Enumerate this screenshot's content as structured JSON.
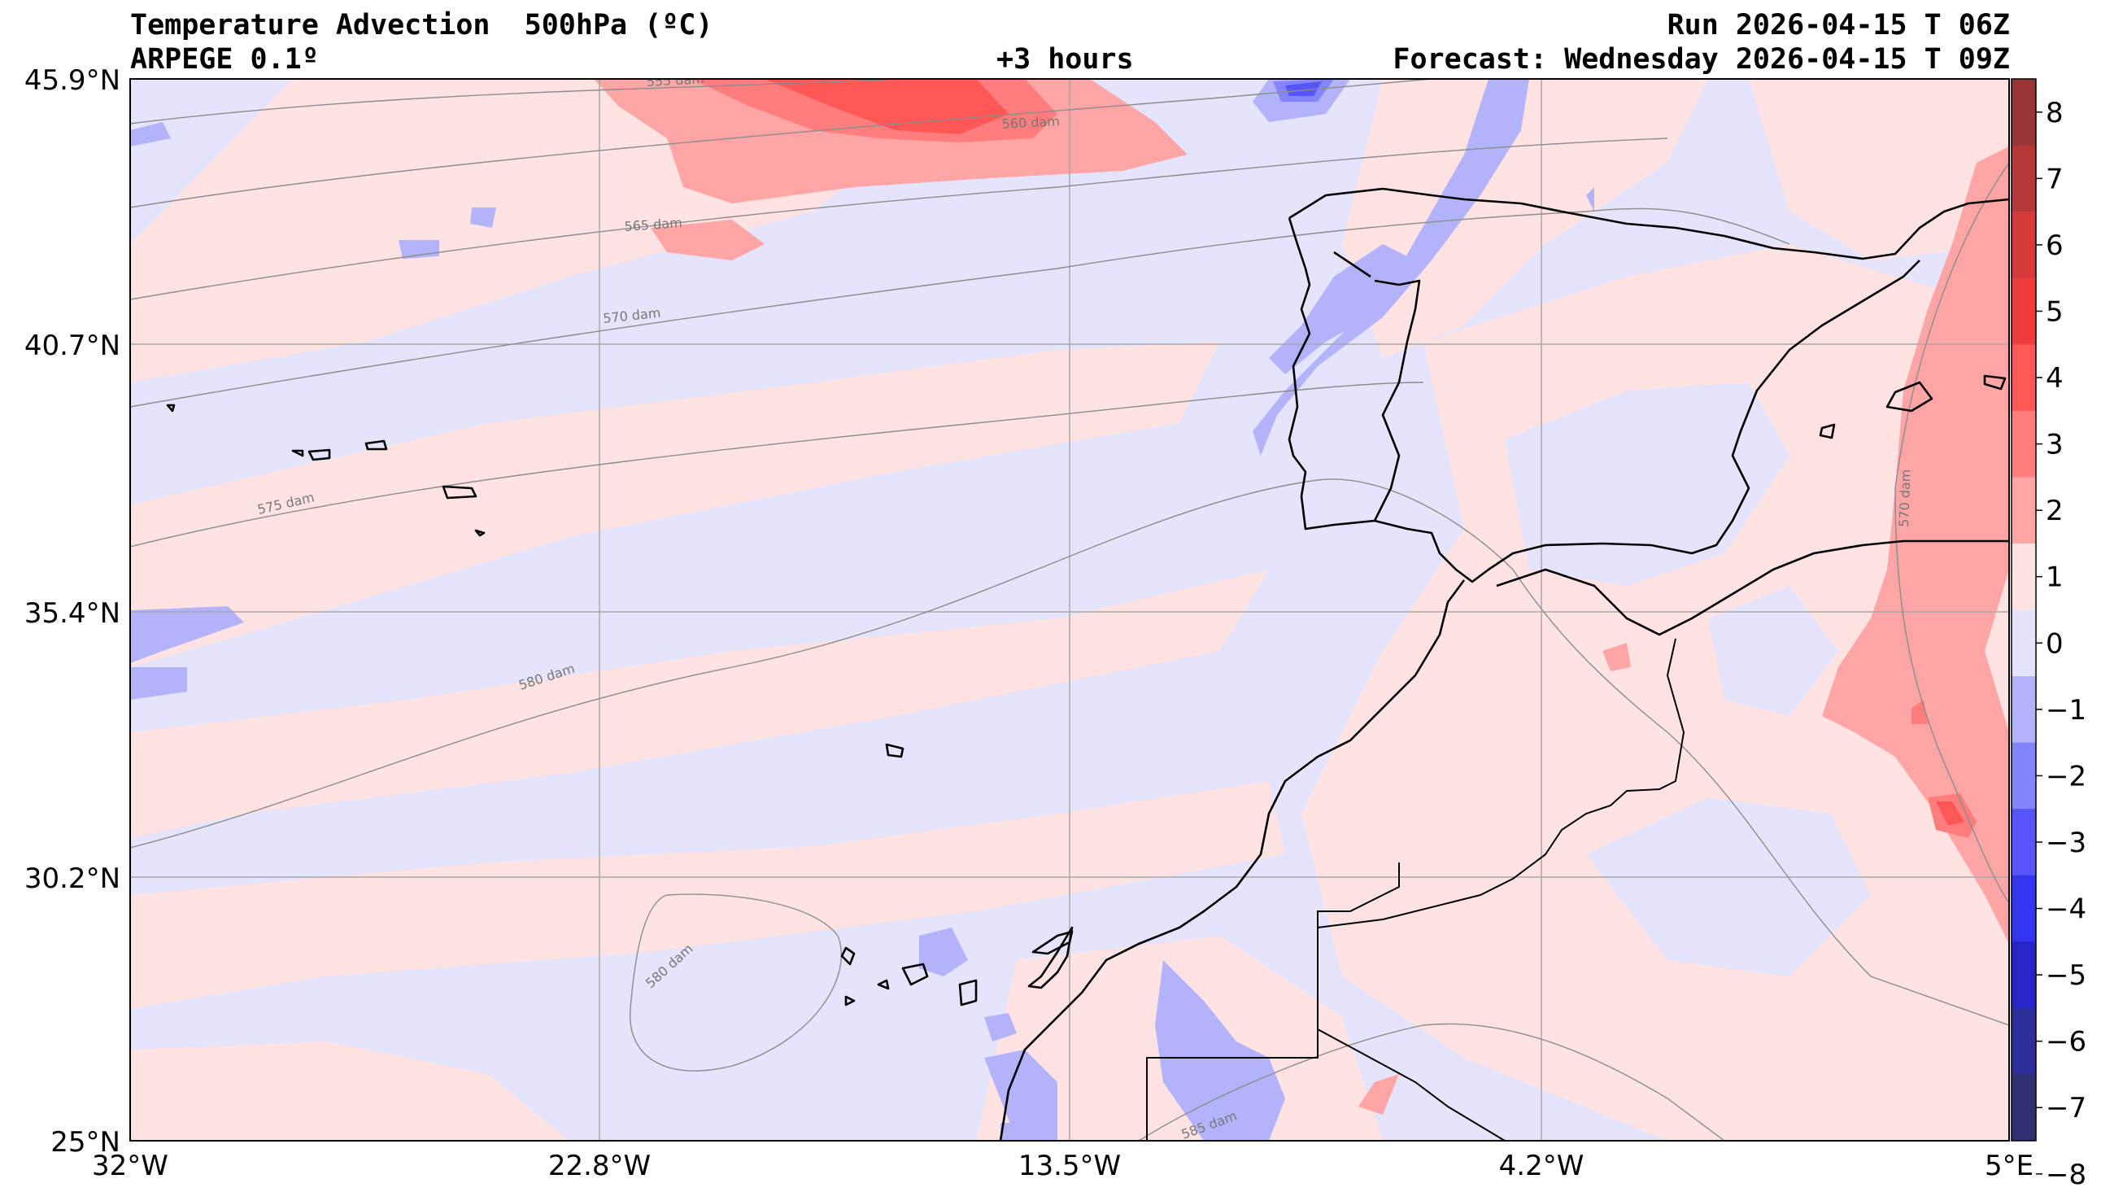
{
  "header": {
    "title": "Temperature Advection  500hPa (ºC)",
    "model": "ARPEGE 0.1º",
    "lead": "+3 hours",
    "run": "Run 2026-04-15 T 06Z",
    "forecast": "Forecast: Wednesday 2026-04-15 T 09Z"
  },
  "axes": {
    "lat_labels": [
      "45.9°N",
      "40.7°N",
      "35.4°N",
      "30.2°N",
      "25°N"
    ],
    "lon_labels": [
      "32°W",
      "22.8°W",
      "13.5°W",
      "4.2°W",
      "5°E"
    ]
  },
  "colorbar": {
    "ticks": [
      "8",
      "7",
      "6",
      "5",
      "4",
      "3",
      "2",
      "1",
      "0",
      "−1",
      "−2",
      "−3",
      "−4",
      "−5",
      "−6",
      "−7",
      "−8"
    ],
    "colors": [
      "#983636",
      "#b43838",
      "#d43a3a",
      "#ef3d3d",
      "#ff5656",
      "#ff7d7d",
      "#ffa5a5",
      "#ffe2e2",
      "#e4e4fc",
      "#b3b3fb",
      "#8484fb",
      "#5555fa",
      "#3535ef",
      "#2525c8",
      "#2e2e9a",
      "#2f2f72"
    ]
  },
  "contours": {
    "labels": [
      "565 dam",
      "570 dam",
      "575 dam",
      "580 dam",
      "580 dam",
      "585 dam",
      "570 dam",
      "555 dam",
      "560 dam"
    ]
  }
}
